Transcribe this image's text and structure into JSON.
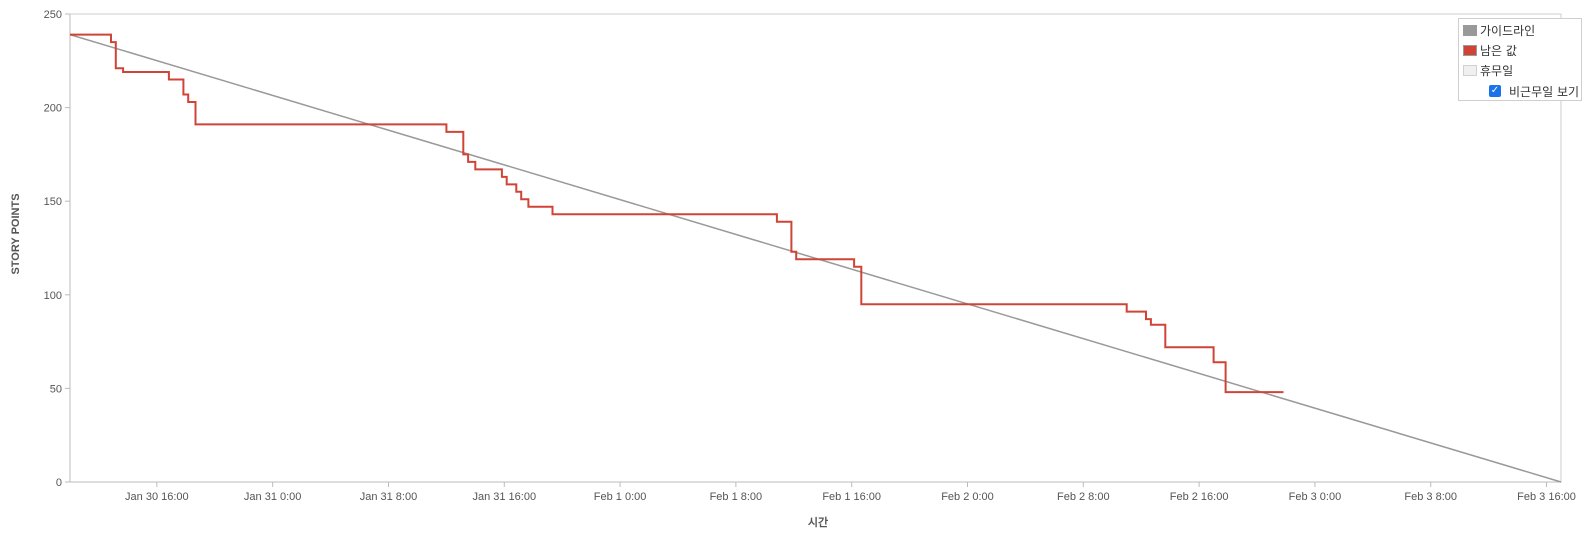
{
  "chart_data": {
    "type": "line",
    "xlabel": "시간",
    "ylabel": "STORY POINTS",
    "x_range": [
      "2024-01-30 10:00",
      "2024-02-03 17:00"
    ],
    "ylim": [
      0,
      250
    ],
    "y_ticks": [
      0,
      50,
      100,
      150,
      200,
      250
    ],
    "x_ticks": [
      {
        "t": "2024-01-30 16:00",
        "label": "Jan 30 16:00"
      },
      {
        "t": "2024-01-31 00:00",
        "label": "Jan 31 0:00"
      },
      {
        "t": "2024-01-31 08:00",
        "label": "Jan 31 8:00"
      },
      {
        "t": "2024-01-31 16:00",
        "label": "Jan 31 16:00"
      },
      {
        "t": "2024-02-01 00:00",
        "label": "Feb 1 0:00"
      },
      {
        "t": "2024-02-01 08:00",
        "label": "Feb 1 8:00"
      },
      {
        "t": "2024-02-01 16:00",
        "label": "Feb 1 16:00"
      },
      {
        "t": "2024-02-02 00:00",
        "label": "Feb 2 0:00"
      },
      {
        "t": "2024-02-02 08:00",
        "label": "Feb 2 8:00"
      },
      {
        "t": "2024-02-02 16:00",
        "label": "Feb 2 16:00"
      },
      {
        "t": "2024-02-03 00:00",
        "label": "Feb 3 0:00"
      },
      {
        "t": "2024-02-03 08:00",
        "label": "Feb 3 8:00"
      },
      {
        "t": "2024-02-03 16:00",
        "label": "Feb 3 16:00"
      }
    ],
    "grid": false,
    "legend_position": "top-right",
    "series": [
      {
        "name": "가이드라인",
        "color": "#999999",
        "style": "line",
        "points": [
          [
            "2024-01-30 10:00",
            239
          ],
          [
            "2024-02-03 17:00",
            0
          ]
        ]
      },
      {
        "name": "남은 값",
        "color": "#d04437",
        "style": "step",
        "points": [
          [
            "2024-01-30 10:00",
            239
          ],
          [
            "2024-01-30 12:50",
            235
          ],
          [
            "2024-01-30 13:10",
            221
          ],
          [
            "2024-01-30 13:40",
            219
          ],
          [
            "2024-01-30 16:50",
            215
          ],
          [
            "2024-01-30 17:50",
            207
          ],
          [
            "2024-01-30 18:10",
            203
          ],
          [
            "2024-01-30 18:40",
            191
          ],
          [
            "2024-01-31 12:00",
            187
          ],
          [
            "2024-01-31 13:10",
            175
          ],
          [
            "2024-01-31 13:30",
            171
          ],
          [
            "2024-01-31 14:00",
            167
          ],
          [
            "2024-01-31 15:50",
            163
          ],
          [
            "2024-01-31 16:10",
            159
          ],
          [
            "2024-01-31 16:50",
            155
          ],
          [
            "2024-01-31 17:10",
            151
          ],
          [
            "2024-01-31 17:40",
            147
          ],
          [
            "2024-01-31 19:20",
            143
          ],
          [
            "2024-02-01 10:50",
            139
          ],
          [
            "2024-02-01 11:50",
            123
          ],
          [
            "2024-02-01 12:10",
            119
          ],
          [
            "2024-02-01 16:10",
            115
          ],
          [
            "2024-02-01 16:40",
            95
          ],
          [
            "2024-02-02 11:00",
            91
          ],
          [
            "2024-02-02 12:20",
            87
          ],
          [
            "2024-02-02 12:40",
            84
          ],
          [
            "2024-02-02 13:40",
            72
          ],
          [
            "2024-02-02 17:00",
            64
          ],
          [
            "2024-02-02 17:50",
            48
          ],
          [
            "2024-02-02 21:50",
            48
          ]
        ]
      },
      {
        "name": "휴무일",
        "color": "#f0f0f0",
        "style": "none",
        "points": []
      }
    ],
    "legend_toggle": {
      "label": "비근무일 보기",
      "checked": true
    }
  }
}
